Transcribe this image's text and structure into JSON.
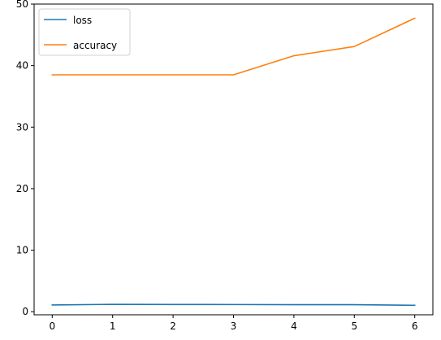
{
  "chart_data": {
    "type": "line",
    "title": "",
    "xlabel": "",
    "ylabel": "",
    "x": [
      0,
      1,
      2,
      3,
      4,
      5,
      6
    ],
    "xlim": [
      -0.3,
      6.3
    ],
    "ylim": [
      -0.5,
      50
    ],
    "xticks": [
      0,
      1,
      2,
      3,
      4,
      5,
      6
    ],
    "yticks": [
      0,
      10,
      20,
      30,
      40,
      50
    ],
    "grid": false,
    "legend_position": "top-left",
    "series": [
      {
        "name": "loss",
        "color": "#1f77b4",
        "values": [
          1.1,
          1.2,
          1.18,
          1.17,
          1.14,
          1.15,
          1.05
        ]
      },
      {
        "name": "accuracy",
        "color": "#ff7f0e",
        "values": [
          38.5,
          38.5,
          38.5,
          38.5,
          41.6,
          43.1,
          47.7
        ]
      }
    ]
  }
}
